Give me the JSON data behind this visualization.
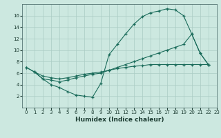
{
  "xlabel": "Humidex (Indice chaleur)",
  "bg_color": "#cce8e0",
  "grid_color": "#aaccC4",
  "line_color": "#1a6b5a",
  "s1_x": [
    0,
    1,
    2,
    3,
    4,
    5,
    6,
    7,
    8,
    9,
    10,
    11,
    12,
    13,
    14,
    15,
    16,
    17,
    18,
    19,
    20,
    21,
    22
  ],
  "s1_y": [
    7.0,
    6.2,
    5.0,
    4.0,
    3.5,
    2.8,
    2.2,
    2.0,
    1.8,
    4.2,
    9.2,
    11.0,
    12.8,
    14.5,
    15.8,
    16.5,
    16.8,
    17.2,
    17.0,
    16.0,
    12.8,
    9.5,
    7.5
  ],
  "s2_x": [
    1,
    2,
    3,
    4,
    5,
    6,
    7,
    8,
    9,
    10,
    11,
    12,
    13,
    14,
    15,
    16,
    17,
    18,
    19,
    20,
    21,
    22
  ],
  "s2_y": [
    6.2,
    5.0,
    4.8,
    4.5,
    4.8,
    5.2,
    5.5,
    5.8,
    6.0,
    6.5,
    7.0,
    7.5,
    8.0,
    8.5,
    9.0,
    9.5,
    10.0,
    10.5,
    11.0,
    12.8,
    9.5,
    7.5
  ],
  "s3_x": [
    0,
    1,
    2,
    3,
    4,
    5,
    6,
    7,
    8,
    9,
    10,
    11,
    12,
    13,
    14,
    15,
    16,
    17,
    18,
    19,
    20,
    21,
    22
  ],
  "s3_y": [
    7.0,
    6.2,
    5.5,
    5.2,
    5.0,
    5.2,
    5.5,
    5.8,
    6.0,
    6.2,
    6.5,
    6.8,
    7.0,
    7.2,
    7.3,
    7.5,
    7.5,
    7.5,
    7.5,
    7.5,
    7.5,
    7.5,
    7.5
  ],
  "xlim": [
    -0.5,
    23
  ],
  "ylim": [
    0,
    18
  ],
  "yticks": [
    2,
    4,
    6,
    8,
    10,
    12,
    14,
    16
  ],
  "xticks": [
    0,
    1,
    2,
    3,
    4,
    5,
    6,
    7,
    8,
    9,
    10,
    11,
    12,
    13,
    14,
    15,
    16,
    17,
    18,
    19,
    20,
    21,
    22,
    23
  ],
  "xlabel_fontsize": 6.5,
  "tick_fontsize": 5
}
